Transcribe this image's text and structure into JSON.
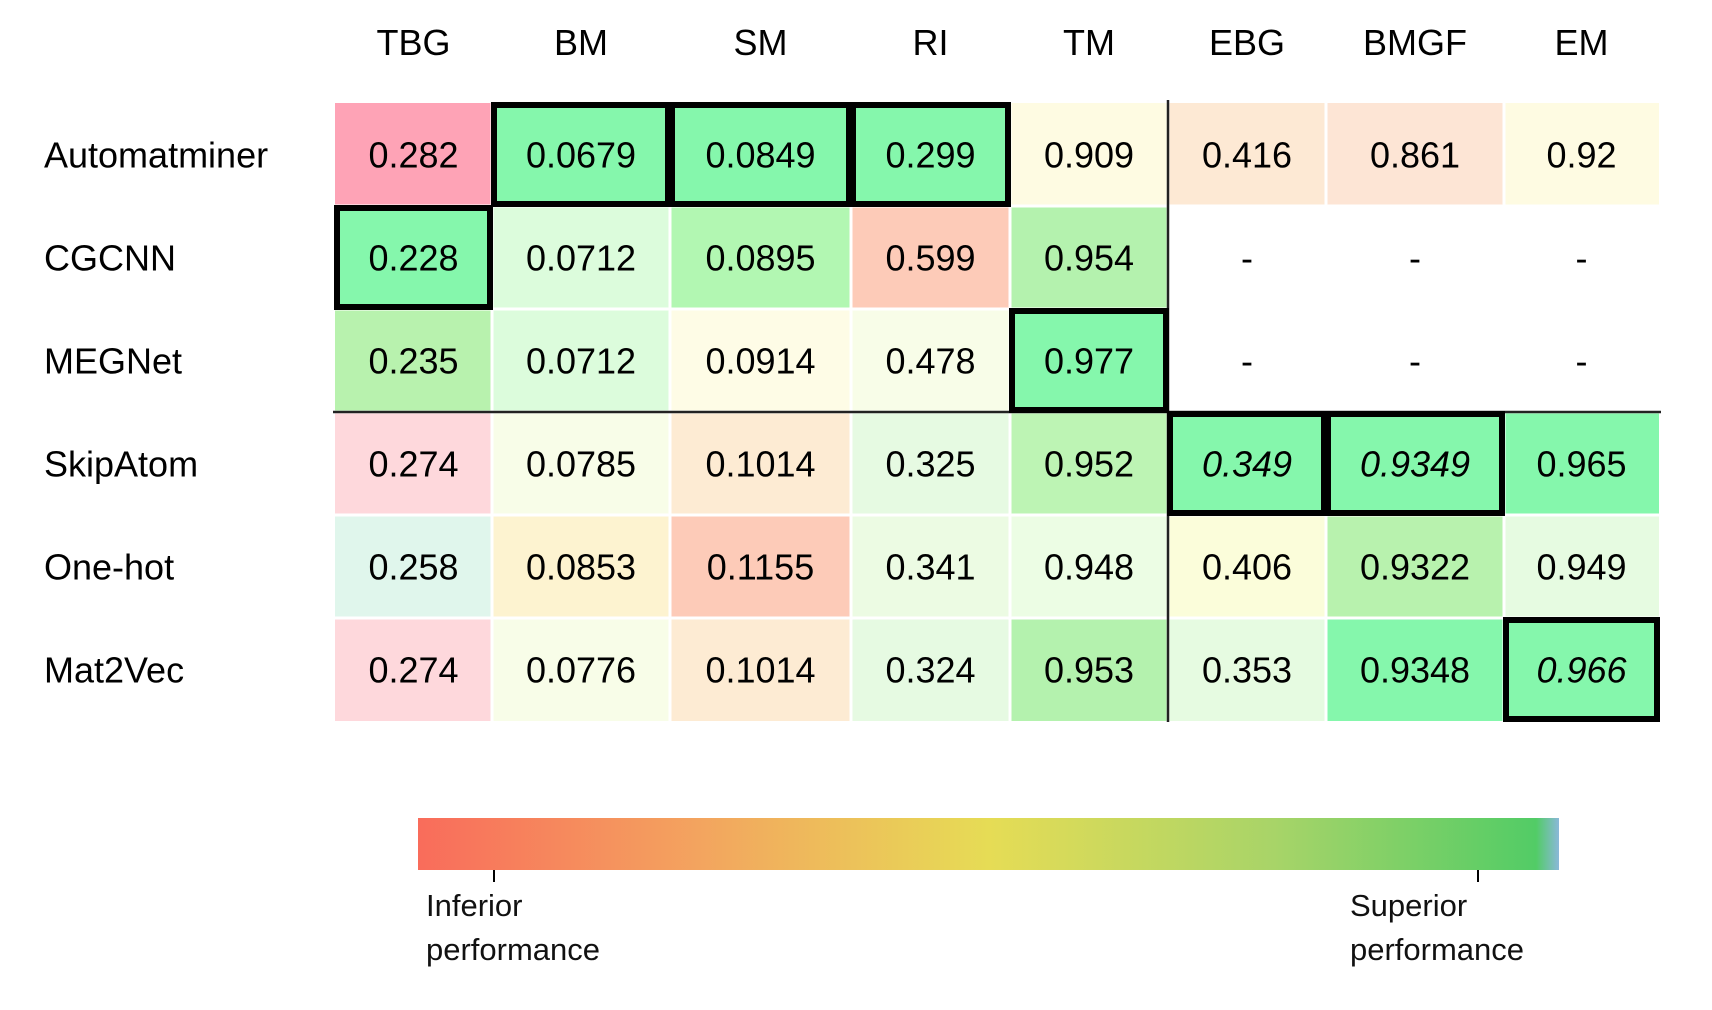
{
  "chart_data": {
    "type": "heatmap",
    "columns": [
      "TBG",
      "BM",
      "SM",
      "RI",
      "TM",
      "EBG",
      "BMGF",
      "EM"
    ],
    "rows": [
      "Automatminer",
      "CGCNN",
      "MEGNet",
      "SkipAtom",
      "One-hot",
      "Mat2Vec"
    ],
    "cells": [
      [
        {
          "text": "0.282",
          "value": 0.282,
          "color": "#fea3b6"
        },
        {
          "text": "0.0679",
          "value": 0.0679,
          "color": "#85f7ac",
          "best": true
        },
        {
          "text": "0.0849",
          "value": 0.0849,
          "color": "#85f7ac",
          "best": true
        },
        {
          "text": "0.299",
          "value": 0.299,
          "color": "#85f7ac",
          "best": true
        },
        {
          "text": "0.909",
          "value": 0.909,
          "color": "#fefbe2"
        },
        {
          "text": "0.416",
          "value": 0.416,
          "color": "#fde9d4"
        },
        {
          "text": "0.861",
          "value": 0.861,
          "color": "#fde5d5"
        },
        {
          "text": "0.92",
          "value": 0.92,
          "color": "#fefbe2"
        }
      ],
      [
        {
          "text": "0.228",
          "value": 0.228,
          "color": "#85f7ac",
          "best": true
        },
        {
          "text": "0.0712",
          "value": 0.0712,
          "color": "#dcfcdc"
        },
        {
          "text": "0.0895",
          "value": 0.0895,
          "color": "#b2f7b2"
        },
        {
          "text": "0.599",
          "value": 0.599,
          "color": "#fdcbb8"
        },
        {
          "text": "0.954",
          "value": 0.954,
          "color": "#b4f2ae"
        },
        {
          "text": "-",
          "value": null,
          "color": "#ffffff"
        },
        {
          "text": "-",
          "value": null,
          "color": "#ffffff"
        },
        {
          "text": "-",
          "value": null,
          "color": "#ffffff"
        }
      ],
      [
        {
          "text": "0.235",
          "value": 0.235,
          "color": "#b8f2ae"
        },
        {
          "text": "0.0712",
          "value": 0.0712,
          "color": "#dcfcdc"
        },
        {
          "text": "0.0914",
          "value": 0.0914,
          "color": "#fefce6"
        },
        {
          "text": "0.478",
          "value": 0.478,
          "color": "#f8fde8"
        },
        {
          "text": "0.977",
          "value": 0.977,
          "color": "#85f7ac",
          "best": true
        },
        {
          "text": "-",
          "value": null,
          "color": "#ffffff"
        },
        {
          "text": "-",
          "value": null,
          "color": "#ffffff"
        },
        {
          "text": "-",
          "value": null,
          "color": "#ffffff"
        }
      ],
      [
        {
          "text": "0.274",
          "value": 0.274,
          "color": "#fed8dc"
        },
        {
          "text": "0.0785",
          "value": 0.0785,
          "color": "#f8fde8"
        },
        {
          "text": "0.1014",
          "value": 0.1014,
          "color": "#fdebd3"
        },
        {
          "text": "0.325",
          "value": 0.325,
          "color": "#e6fae2"
        },
        {
          "text": "0.952",
          "value": 0.952,
          "color": "#bdf4b4"
        },
        {
          "text": "0.349",
          "value": 0.349,
          "color": "#85f7ac",
          "best": true,
          "italic": true
        },
        {
          "text": "0.9349",
          "value": 0.9349,
          "color": "#85f7ac",
          "best": true,
          "italic": true
        },
        {
          "text": "0.965",
          "value": 0.965,
          "color": "#85f7ac"
        }
      ],
      [
        {
          "text": "0.258",
          "value": 0.258,
          "color": "#e0f6ec"
        },
        {
          "text": "0.0853",
          "value": 0.0853,
          "color": "#fdf3d0"
        },
        {
          "text": "0.1155",
          "value": 0.1155,
          "color": "#fdcbb8"
        },
        {
          "text": "0.341",
          "value": 0.341,
          "color": "#ecfbe3"
        },
        {
          "text": "0.948",
          "value": 0.948,
          "color": "#ecfde4"
        },
        {
          "text": "0.406",
          "value": 0.406,
          "color": "#fbfdda"
        },
        {
          "text": "0.9322",
          "value": 0.9322,
          "color": "#b8f2ae"
        },
        {
          "text": "0.949",
          "value": 0.949,
          "color": "#e6fbe1"
        }
      ],
      [
        {
          "text": "0.274",
          "value": 0.274,
          "color": "#fed8dc"
        },
        {
          "text": "0.0776",
          "value": 0.0776,
          "color": "#f8fde8"
        },
        {
          "text": "0.1014",
          "value": 0.1014,
          "color": "#fdebd3"
        },
        {
          "text": "0.324",
          "value": 0.324,
          "color": "#e6fae2"
        },
        {
          "text": "0.953",
          "value": 0.953,
          "color": "#b4f2ae"
        },
        {
          "text": "0.353",
          "value": 0.353,
          "color": "#e6fbe1"
        },
        {
          "text": "0.9348",
          "value": 0.9348,
          "color": "#85f7ac"
        },
        {
          "text": "0.966",
          "value": 0.966,
          "color": "#85f7ac",
          "best": true,
          "italic": true
        }
      ]
    ],
    "legend": {
      "low_label_line1": "Inferior",
      "low_label_line2": "performance",
      "high_label_line1": "Superior",
      "high_label_line2": "performance",
      "gradient_colors": [
        "#f96c5b",
        "#f3a55f",
        "#e6dc55",
        "#a8d468",
        "#52cc66"
      ]
    }
  }
}
